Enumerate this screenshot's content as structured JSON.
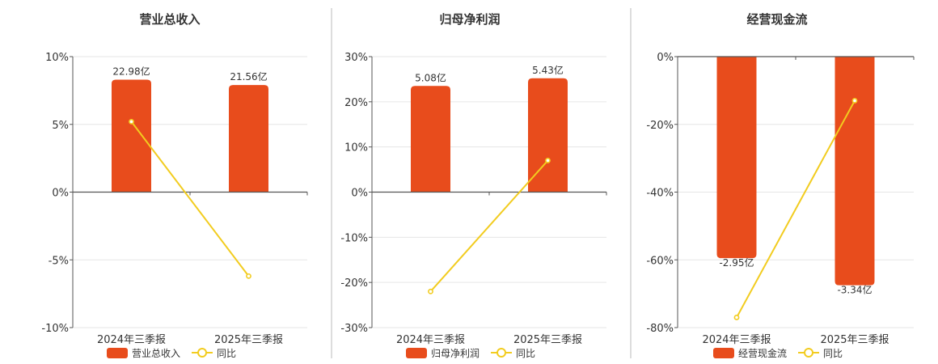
{
  "colors": {
    "bar": "#e84c1c",
    "line": "#f2cc1f",
    "grid": "#e6e6e6",
    "axis": "#555555",
    "separator": "#bbbbbb"
  },
  "chart_data": [
    {
      "type": "bar",
      "title": "营业总收入",
      "categories": [
        "2024年三季报",
        "2025年三季报"
      ],
      "ylim": [
        -10,
        10
      ],
      "yticks": [
        10,
        5,
        0,
        -5,
        -10
      ],
      "tick_suffix": "%",
      "grid": true,
      "legend_placement": "bottom-center",
      "series": [
        {
          "name": "营业总收入",
          "kind": "bar",
          "values": [
            8.3,
            7.9
          ],
          "labels": [
            "22.98亿",
            "21.56亿"
          ]
        },
        {
          "name": "同比",
          "kind": "line",
          "values": [
            5.2,
            -6.2
          ]
        }
      ]
    },
    {
      "type": "bar",
      "title": "归母净利润",
      "categories": [
        "2024年三季报",
        "2025年三季报"
      ],
      "ylim": [
        -30,
        30
      ],
      "yticks": [
        30,
        20,
        10,
        0,
        -10,
        -20,
        -30
      ],
      "tick_suffix": "%",
      "grid": true,
      "legend_placement": "bottom-center",
      "series": [
        {
          "name": "归母净利润",
          "kind": "bar",
          "values": [
            23.5,
            25.2
          ],
          "labels": [
            "5.08亿",
            "5.43亿"
          ]
        },
        {
          "name": "同比",
          "kind": "line",
          "values": [
            -22.0,
            7.0
          ]
        }
      ]
    },
    {
      "type": "bar",
      "title": "经营现金流",
      "categories": [
        "2024年三季报",
        "2025年三季报"
      ],
      "ylim": [
        -80,
        0
      ],
      "yticks": [
        0,
        -20,
        -40,
        -60,
        -80
      ],
      "tick_suffix": "%",
      "grid": true,
      "legend_placement": "bottom-center",
      "series": [
        {
          "name": "经营现金流",
          "kind": "bar",
          "values": [
            -59.5,
            -67.5
          ],
          "labels": [
            "-2.95亿",
            "-3.34亿"
          ]
        },
        {
          "name": "同比",
          "kind": "line",
          "values": [
            -77.0,
            -13.0
          ]
        }
      ]
    }
  ]
}
